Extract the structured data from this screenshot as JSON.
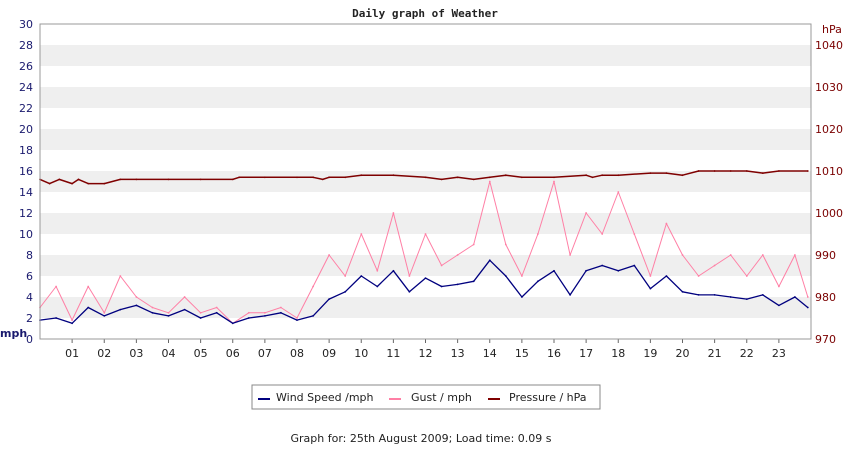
{
  "chart_data": {
    "type": "line",
    "title": "Daily graph of Weather",
    "left_axis": {
      "unit": "mph",
      "min": 0,
      "max": 30,
      "ticks": [
        0,
        2,
        4,
        6,
        8,
        10,
        12,
        14,
        16,
        18,
        20,
        22,
        24,
        26,
        28,
        30
      ]
    },
    "right_axis": {
      "unit": "hPa",
      "min": 970,
      "max": 1045,
      "ticks": [
        970,
        980,
        990,
        1000,
        1010,
        1020,
        1030,
        1040
      ]
    },
    "x_axis": {
      "min": 0,
      "max": 24,
      "labels": [
        "01",
        "02",
        "03",
        "04",
        "05",
        "06",
        "07",
        "08",
        "09",
        "10",
        "11",
        "12",
        "13",
        "14",
        "15",
        "16",
        "17",
        "18",
        "19",
        "20",
        "21",
        "22",
        "23"
      ]
    },
    "grid": "horizontal bands",
    "legend_position": "bottom",
    "series": [
      {
        "name": "Wind Speed /mph",
        "axis": "left",
        "color": "#00007f",
        "x": [
          0,
          0.5,
          1,
          1.5,
          2,
          2.5,
          3,
          3.5,
          4,
          4.5,
          5,
          5.5,
          6,
          6.5,
          7,
          7.5,
          8,
          8.5,
          9,
          9.5,
          10,
          10.5,
          11,
          11.5,
          12,
          12.5,
          13,
          13.5,
          14,
          14.5,
          15,
          15.5,
          16,
          16.5,
          17,
          17.5,
          18,
          18.5,
          19,
          19.5,
          20,
          20.5,
          21,
          21.5,
          22,
          22.5,
          23,
          23.5,
          23.9
        ],
        "values": [
          1.8,
          2.0,
          1.5,
          3.0,
          2.2,
          2.8,
          3.2,
          2.5,
          2.2,
          2.8,
          2.0,
          2.5,
          1.5,
          2.0,
          2.2,
          2.5,
          1.8,
          2.2,
          3.8,
          4.5,
          6.0,
          5.0,
          6.5,
          4.5,
          5.8,
          5.0,
          5.2,
          5.5,
          7.5,
          6.0,
          4.0,
          5.5,
          6.5,
          4.2,
          6.5,
          7.0,
          6.5,
          7.0,
          4.8,
          6.0,
          4.5,
          4.2,
          4.2,
          4.0,
          3.8,
          4.2,
          3.2,
          4.0,
          3.0
        ]
      },
      {
        "name": "Gust / mph",
        "axis": "left",
        "color": "#ff7fa5",
        "x": [
          0,
          0.5,
          1,
          1.5,
          2,
          2.5,
          3,
          3.5,
          4,
          4.5,
          5,
          5.5,
          6,
          6.5,
          7,
          7.5,
          8,
          8.5,
          9,
          9.5,
          10,
          10.5,
          11,
          11.5,
          12,
          12.5,
          13,
          13.5,
          14,
          14.5,
          15,
          15.5,
          16,
          16.5,
          17,
          17.5,
          18,
          18.5,
          19,
          19.5,
          20,
          20.5,
          21,
          21.5,
          22,
          22.5,
          23,
          23.5,
          23.9
        ],
        "values": [
          3.0,
          5.0,
          1.8,
          5.0,
          2.5,
          6.0,
          4.0,
          3.0,
          2.5,
          4.0,
          2.5,
          3.0,
          1.5,
          2.5,
          2.5,
          3.0,
          2.0,
          5.0,
          8.0,
          6.0,
          10.0,
          6.5,
          12.0,
          6.0,
          10.0,
          7.0,
          8.0,
          9.0,
          15.0,
          9.0,
          6.0,
          10.0,
          15.0,
          8.0,
          12.0,
          10.0,
          14.0,
          10.0,
          6.0,
          11.0,
          8.0,
          6.0,
          7.0,
          8.0,
          6.0,
          8.0,
          5.0,
          8.0,
          4.0
        ]
      },
      {
        "name": "Pressure / hPa",
        "axis": "right",
        "color": "#7f0000",
        "x": [
          0,
          0.3,
          0.6,
          1,
          1.2,
          1.5,
          2,
          2.5,
          3,
          4,
          5,
          6,
          6.2,
          7,
          8,
          8.5,
          8.8,
          9,
          9.5,
          10,
          11,
          12,
          12.5,
          13,
          13.5,
          14,
          14.5,
          15,
          16,
          17,
          17.2,
          17.5,
          18,
          19,
          19.5,
          20,
          20.5,
          21,
          21.5,
          22,
          22.5,
          23,
          23.9
        ],
        "values": [
          1008,
          1007,
          1008,
          1007,
          1008,
          1007,
          1007,
          1008,
          1008,
          1008,
          1008,
          1008,
          1008.5,
          1008.5,
          1008.5,
          1008.5,
          1008,
          1008.5,
          1008.5,
          1009,
          1009,
          1008.5,
          1008,
          1008.5,
          1008,
          1008.5,
          1009,
          1008.5,
          1008.5,
          1009,
          1008.5,
          1009,
          1009,
          1009.5,
          1009.5,
          1009,
          1010,
          1010,
          1010,
          1010,
          1009.5,
          1010,
          1010
        ]
      }
    ]
  },
  "footer": {
    "date_label": "Graph for: 25th August 2009; Load time: 0.09 s"
  }
}
